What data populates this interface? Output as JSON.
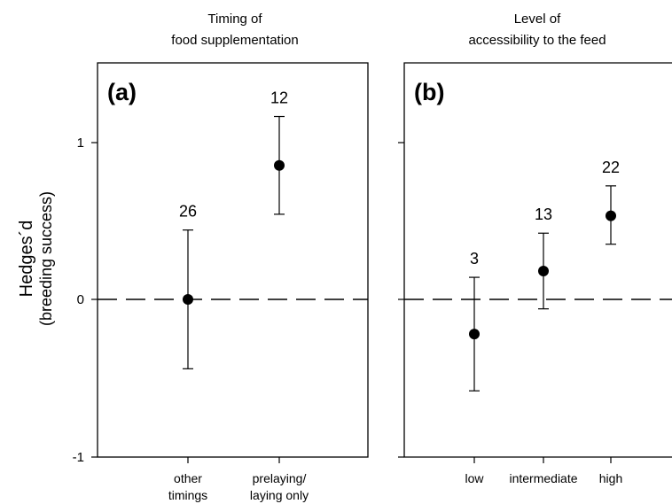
{
  "y_axis_label": [
    "Hedges´d",
    "(breeding success)"
  ],
  "y_ticks": [
    "1",
    "0",
    "-1"
  ],
  "chart_data": [
    {
      "type": "scatter",
      "panel": "(a)",
      "title": [
        "Timing of",
        "food supplementation"
      ],
      "categories": [
        [
          "other",
          "timings"
        ],
        [
          "prelaying/",
          "laying only"
        ]
      ],
      "values": [
        0,
        0.85
      ],
      "ci_low": [
        -0.44,
        0.54
      ],
      "ci_high": [
        0.44,
        1.16
      ],
      "n": [
        "26",
        "12"
      ],
      "ylim": [
        -1,
        1.5
      ],
      "yticks": [
        -1,
        0,
        1
      ],
      "reference_line": 0,
      "grid": false
    },
    {
      "type": "scatter",
      "panel": "(b)",
      "title": [
        "Level of",
        "accessibility to the feed"
      ],
      "categories": [
        [
          "low"
        ],
        [
          "intermediate"
        ],
        [
          "high"
        ]
      ],
      "values": [
        -0.22,
        0.18,
        0.53
      ],
      "ci_low": [
        -0.58,
        -0.06,
        0.35
      ],
      "ci_high": [
        0.14,
        0.42,
        0.72
      ],
      "n": [
        "3",
        "13",
        "22"
      ],
      "ylim": [
        -1,
        1.5
      ],
      "yticks": [
        -1,
        0,
        1
      ],
      "reference_line": 0,
      "grid": false
    }
  ]
}
